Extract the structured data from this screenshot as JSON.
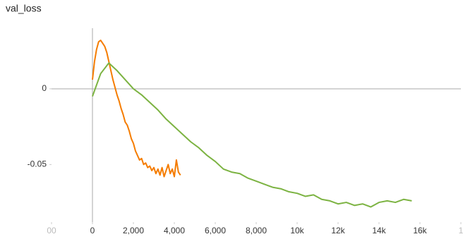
{
  "chart_data": {
    "type": "line",
    "title": "val_loss",
    "xlim": [
      -2000,
      18000
    ],
    "xticks": [
      {
        "value": -2000,
        "label": "00"
      },
      0,
      {
        "value": 2000,
        "label": "2,000"
      },
      {
        "value": 4000,
        "label": "4,000"
      },
      {
        "value": 6000,
        "label": "6,000"
      },
      {
        "value": 8000,
        "label": "8,000"
      },
      {
        "value": 10000,
        "label": "10k"
      },
      {
        "value": 12000,
        "label": "12k"
      },
      {
        "value": 14000,
        "label": "14k"
      },
      {
        "value": 16000,
        "label": "16k"
      },
      {
        "value": 18000,
        "label": "1"
      }
    ],
    "ylim": [
      -0.088,
      0.04
    ],
    "yticks": [
      -0.05,
      0
    ],
    "grid": false,
    "series": [
      {
        "color": "#f57c00",
        "x": [
          0,
          100,
          200,
          300,
          400,
          500,
          600,
          700,
          800,
          900,
          1000,
          1100,
          1200,
          1300,
          1400,
          1500,
          1600,
          1700,
          1800,
          1900,
          2000,
          2100,
          2200,
          2300,
          2400,
          2500,
          2600,
          2700,
          2800,
          2900,
          3000,
          3100,
          3200,
          3300,
          3400,
          3500,
          3600,
          3700,
          3800,
          3900,
          4000,
          4100,
          4200,
          4300
        ],
        "values": [
          0.006,
          0.018,
          0.026,
          0.031,
          0.032,
          0.03,
          0.028,
          0.024,
          0.018,
          0.012,
          0.006,
          0.001,
          -0.004,
          -0.008,
          -0.013,
          -0.017,
          -0.022,
          -0.024,
          -0.028,
          -0.033,
          -0.036,
          -0.041,
          -0.044,
          -0.047,
          -0.046,
          -0.05,
          -0.049,
          -0.052,
          -0.051,
          -0.054,
          -0.052,
          -0.056,
          -0.053,
          -0.057,
          -0.052,
          -0.058,
          -0.054,
          -0.05,
          -0.056,
          -0.053,
          -0.058,
          -0.047,
          -0.055,
          -0.057
        ]
      },
      {
        "color": "#7cb342",
        "x": [
          0,
          400,
          800,
          1200,
          1600,
          2000,
          2400,
          2800,
          3200,
          3600,
          4000,
          4400,
          4800,
          5200,
          5600,
          6000,
          6400,
          6800,
          7200,
          7600,
          8000,
          8400,
          8800,
          9200,
          9600,
          10000,
          10400,
          10800,
          11200,
          11600,
          12000,
          12400,
          12800,
          13200,
          13600,
          14000,
          14400,
          14800,
          15200,
          15600
        ],
        "values": [
          -0.005,
          0.01,
          0.017,
          0.012,
          0.006,
          0.0,
          -0.004,
          -0.009,
          -0.014,
          -0.02,
          -0.025,
          -0.03,
          -0.035,
          -0.039,
          -0.044,
          -0.048,
          -0.053,
          -0.055,
          -0.056,
          -0.059,
          -0.061,
          -0.063,
          -0.065,
          -0.066,
          -0.068,
          -0.069,
          -0.071,
          -0.07,
          -0.073,
          -0.074,
          -0.076,
          -0.075,
          -0.077,
          -0.076,
          -0.078,
          -0.075,
          -0.074,
          -0.075,
          -0.073,
          -0.074
        ]
      }
    ]
  }
}
